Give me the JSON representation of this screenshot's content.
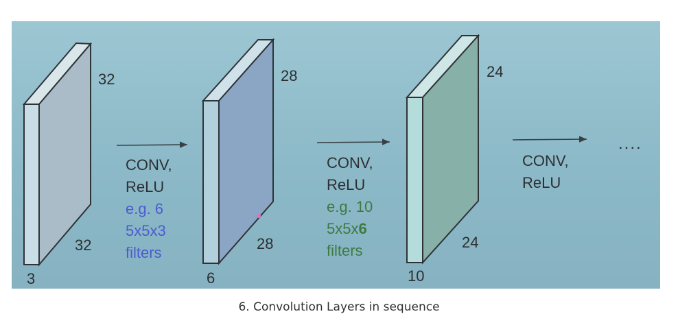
{
  "volumes": [
    {
      "height": "32",
      "width": "32",
      "depth": "3",
      "face_color": "#a9bcc8",
      "side_color": "#c8dde5"
    },
    {
      "height": "28",
      "width": "28",
      "depth": "6",
      "face_color": "#8aa6c4",
      "side_color": "#b2d0dc"
    },
    {
      "height": "24",
      "width": "24",
      "depth": "10",
      "face_color": "#86b0a8",
      "side_color": "#b4dcdb"
    }
  ],
  "steps": [
    {
      "op_line1": "CONV,",
      "op_line2": "ReLU",
      "ex_line1": "e.g. 6",
      "ex_line2": "5x5x3",
      "ex_line3": "filters",
      "color": "#4a5bd0"
    },
    {
      "op_line1": "CONV,",
      "op_line2": "ReLU",
      "ex_line1": "e.g. 10",
      "ex_line2_prefix": "5x5x",
      "ex_line2_bold": "6",
      "ex_line3": "filters",
      "color": "#3e7a40"
    },
    {
      "op_line1": "CONV,",
      "op_line2": "ReLU"
    }
  ],
  "ellipsis": "....",
  "caption": "6. Convolution Layers in sequence"
}
